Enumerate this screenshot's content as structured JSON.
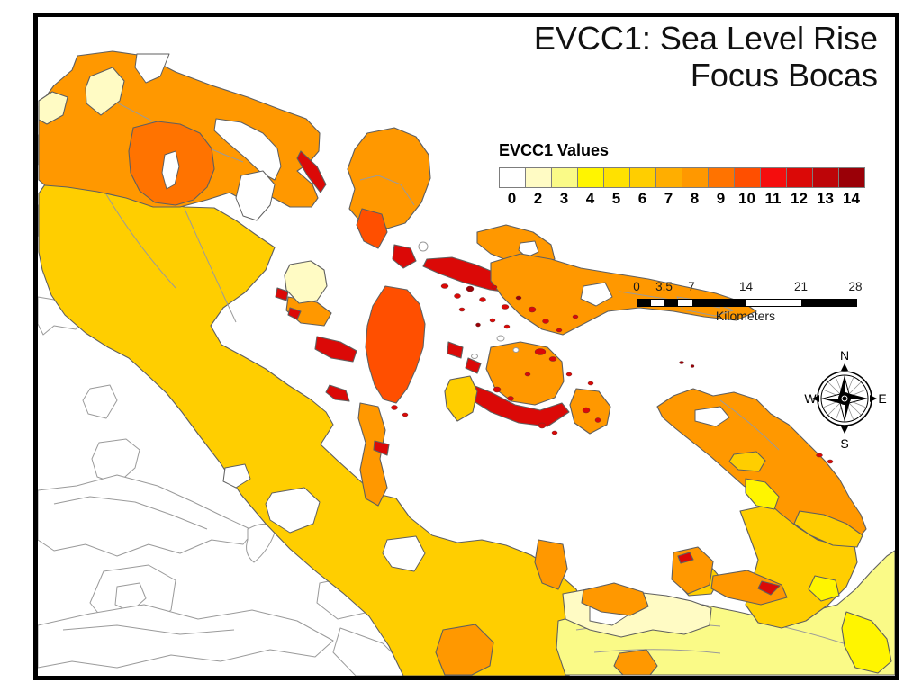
{
  "title": {
    "line1": "EVCC1: Sea Level Rise",
    "line2": "Focus Bocas"
  },
  "palette": {
    "v0": "#FFFFFF",
    "v2": "#FFFBC4",
    "v3": "#FAFA87",
    "v4": "#FFF500",
    "v5": "#FFE100",
    "v6": "#FFCE00",
    "v7": "#FFAE00",
    "v8": "#FF9800",
    "v9": "#FF7300",
    "v10": "#FF4F00",
    "v11": "#F50D0D",
    "v12": "#DB0907",
    "v13": "#BD0508",
    "v14": "#9A0007"
  },
  "legend": {
    "title": "EVCC1 Values",
    "entries": [
      {
        "label": "0",
        "key": "v0"
      },
      {
        "label": "2",
        "key": "v2"
      },
      {
        "label": "3",
        "key": "v3"
      },
      {
        "label": "4",
        "key": "v4"
      },
      {
        "label": "5",
        "key": "v5"
      },
      {
        "label": "6",
        "key": "v6"
      },
      {
        "label": "7",
        "key": "v7"
      },
      {
        "label": "8",
        "key": "v8"
      },
      {
        "label": "9",
        "key": "v9"
      },
      {
        "label": "10",
        "key": "v10"
      },
      {
        "label": "11",
        "key": "v11"
      },
      {
        "label": "12",
        "key": "v12"
      },
      {
        "label": "13",
        "key": "v13"
      },
      {
        "label": "14",
        "key": "v14"
      }
    ]
  },
  "scalebar": {
    "ticks": [
      "0",
      "3.5",
      "7",
      "14",
      "21",
      "28"
    ],
    "unit": "Kilometers"
  },
  "compass": {
    "n": "N",
    "s": "S",
    "e": "E",
    "w": "W"
  },
  "map": {
    "outline_color": "#5f5f5f",
    "contour_color": "#9a9a9a",
    "sea_color": "#FFFFFF",
    "frame_color": "#000000"
  }
}
